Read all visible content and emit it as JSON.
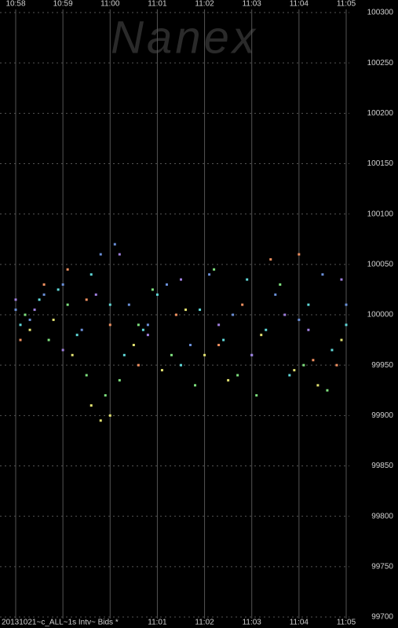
{
  "chart_data": {
    "type": "scatter",
    "watermark": "Nanex",
    "footer_label": "20131021~c_ALL~1s Intv~ Bids *",
    "xlim": [
      658,
      665
    ],
    "ylim": [
      99700,
      100300
    ],
    "xticks": [
      {
        "value": 658,
        "label": "10:58"
      },
      {
        "value": 659,
        "label": "10:59"
      },
      {
        "value": 660,
        "label": "11:00"
      },
      {
        "value": 661,
        "label": "11:01"
      },
      {
        "value": 662,
        "label": "11:02"
      },
      {
        "value": 663,
        "label": "11:03"
      },
      {
        "value": 664,
        "label": "11:04"
      },
      {
        "value": 665,
        "label": "11:05"
      }
    ],
    "yticks": [
      99700,
      99750,
      99800,
      99850,
      99900,
      99950,
      100000,
      100050,
      100100,
      100150,
      100200,
      100250,
      100300
    ],
    "grid": true,
    "series": [
      {
        "color": "#6a8fd8",
        "x": [
          658.0,
          658.3,
          658.6,
          659.0,
          659.4,
          659.8,
          660.1,
          660.4,
          660.8,
          661.2,
          661.7,
          662.1,
          662.6,
          663.0,
          663.5,
          664.0,
          664.5,
          665.0
        ],
        "values": [
          100005,
          99995,
          100020,
          100030,
          99985,
          100060,
          100070,
          100010,
          99990,
          100030,
          99970,
          100040,
          100000,
          99960,
          100020,
          99995,
          100040,
          100010
        ]
      },
      {
        "color": "#5fd8d8",
        "x": [
          658.1,
          658.5,
          658.9,
          659.3,
          659.6,
          660.0,
          660.3,
          660.7,
          661.0,
          661.5,
          661.9,
          662.4,
          662.9,
          663.3,
          663.8,
          664.2,
          664.7,
          665.0
        ],
        "values": [
          99990,
          100015,
          100025,
          99980,
          100040,
          100010,
          99960,
          99985,
          100020,
          99950,
          100005,
          99975,
          100035,
          99985,
          99940,
          100010,
          99965,
          99990
        ]
      },
      {
        "color": "#7ee07e",
        "x": [
          658.2,
          658.7,
          659.1,
          659.5,
          659.9,
          660.2,
          660.6,
          660.9,
          661.3,
          661.8,
          662.2,
          662.7,
          663.1,
          663.6,
          664.1,
          664.6
        ],
        "values": [
          100000,
          99975,
          100010,
          99940,
          99920,
          99935,
          99990,
          100025,
          99960,
          99930,
          100045,
          99940,
          99920,
          100030,
          99950,
          99925
        ]
      },
      {
        "color": "#e0e070",
        "x": [
          658.3,
          658.8,
          659.2,
          659.6,
          659.8,
          660.0,
          660.5,
          661.1,
          661.6,
          662.0,
          662.5,
          663.2,
          663.9,
          664.4,
          664.9
        ],
        "values": [
          99985,
          99995,
          99960,
          99910,
          99895,
          99900,
          99970,
          99945,
          100005,
          99960,
          99935,
          99980,
          99945,
          99930,
          99975
        ]
      },
      {
        "color": "#f09060",
        "x": [
          658.1,
          658.6,
          659.1,
          659.5,
          660.0,
          660.6,
          661.4,
          662.3,
          662.8,
          663.4,
          664.0,
          664.3,
          664.8
        ],
        "values": [
          99975,
          100030,
          100045,
          100015,
          99990,
          99950,
          100000,
          99970,
          100010,
          100055,
          100060,
          99955,
          99950
        ]
      },
      {
        "color": "#a080e0",
        "x": [
          658.0,
          658.4,
          659.0,
          659.7,
          660.2,
          660.8,
          661.5,
          662.3,
          663.0,
          663.7,
          664.2,
          664.9
        ],
        "values": [
          100015,
          100005,
          99965,
          100020,
          100060,
          99980,
          100035,
          99990,
          99960,
          100000,
          99985,
          100035
        ]
      }
    ]
  }
}
